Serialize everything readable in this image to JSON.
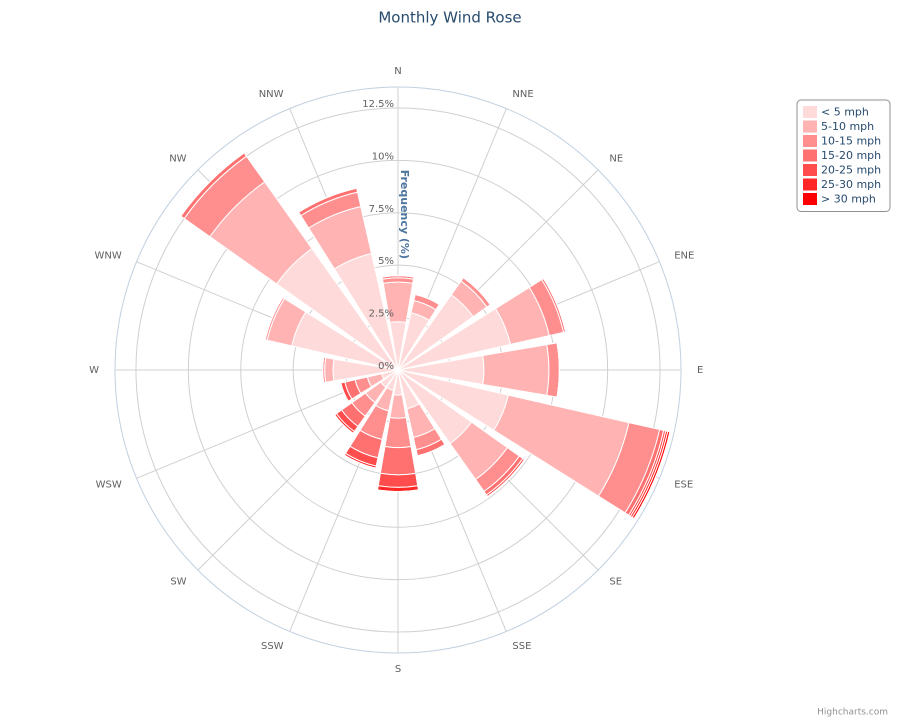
{
  "chart_data": {
    "type": "windrose",
    "title": "Monthly Wind Rose",
    "y_axis_title": "Frequency (%)",
    "credits": "Highcharts.com",
    "categories": [
      "N",
      "NNE",
      "NE",
      "ENE",
      "E",
      "ESE",
      "SE",
      "SSE",
      "S",
      "SSW",
      "SW",
      "WSW",
      "W",
      "WNW",
      "NW",
      "NNW"
    ],
    "ylim": [
      0,
      13.5
    ],
    "yticks": [
      {
        "value": 0,
        "label": "0%"
      },
      {
        "value": 2.5,
        "label": "2.5%"
      },
      {
        "value": 5,
        "label": "5%"
      },
      {
        "value": 7.5,
        "label": "7.5%"
      },
      {
        "value": 10,
        "label": "10%"
      },
      {
        "value": 12.5,
        "label": "12.5%"
      }
    ],
    "legend_position": "top-right",
    "series": [
      {
        "name": "< 5 mph",
        "color": "#ffdada",
        "values": [
          2.3,
          2.8,
          4.4,
          5.5,
          4.1,
          5.4,
          4.3,
          1.9,
          1.2,
          1.0,
          1.0,
          0.8,
          3.1,
          5.2,
          7.1,
          5.7
        ]
      },
      {
        "name": "5-10 mph",
        "color": "#ffb3b3",
        "values": [
          1.9,
          0.6,
          0.8,
          1.9,
          3.1,
          5.9,
          2.1,
          1.4,
          1.1,
          1.0,
          0.9,
          0.7,
          0.4,
          1.2,
          3.9,
          2.3
        ]
      },
      {
        "name": "10-15 mph",
        "color": "#ff8f8f",
        "values": [
          0.2,
          0.3,
          0.2,
          0.7,
          0.5,
          1.5,
          0.7,
          0.6,
          1.4,
          1.4,
          0.8,
          0.6,
          0.1,
          0.1,
          1.5,
          0.7
        ]
      },
      {
        "name": "15-20 mph",
        "color": "#ff7070",
        "values": [
          0.1,
          0,
          0,
          0.1,
          0,
          0.2,
          0.2,
          0.3,
          1.3,
          0.9,
          0.6,
          0.5,
          0,
          0,
          0.2,
          0.2
        ]
      },
      {
        "name": "20-25 mph",
        "color": "#ff4c4c",
        "values": [
          0,
          0,
          0,
          0,
          0,
          0.1,
          0.1,
          0,
          0.6,
          0.4,
          0.3,
          0.2,
          0,
          0,
          0,
          0
        ]
      },
      {
        "name": "25-30 mph",
        "color": "#ff2626",
        "values": [
          0,
          0,
          0,
          0,
          0,
          0.1,
          0,
          0,
          0.2,
          0.1,
          0.1,
          0,
          0,
          0,
          0,
          0
        ]
      },
      {
        "name": "> 30 mph",
        "color": "#ff0000",
        "values": [
          0,
          0,
          0,
          0,
          0,
          0.1,
          0,
          0,
          0,
          0,
          0,
          0,
          0,
          0,
          0,
          0
        ]
      }
    ]
  }
}
